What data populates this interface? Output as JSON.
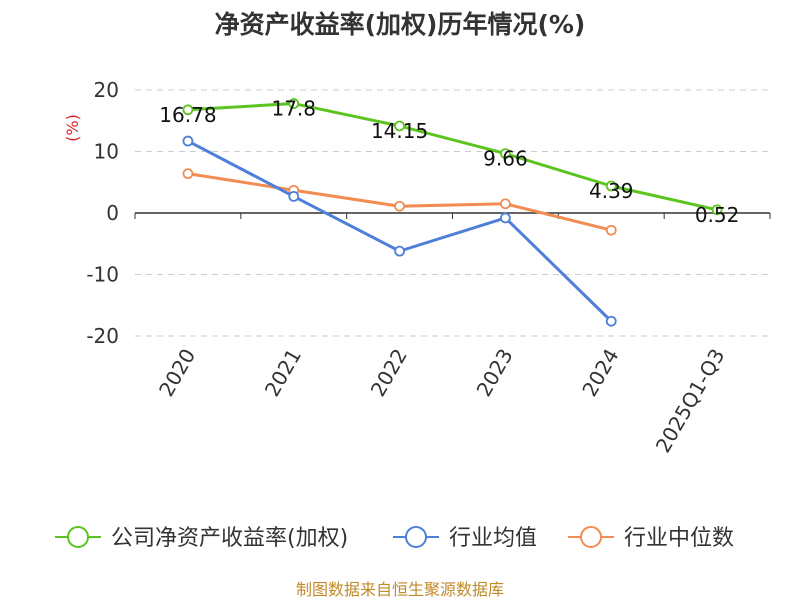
{
  "chart_data": {
    "type": "line",
    "title": "净资产收益率(加权)历年情况(%)",
    "ylabel": "(%)",
    "xlabel": "",
    "categories": [
      "2020",
      "2021",
      "2022",
      "2023",
      "2024",
      "2025Q1-Q3"
    ],
    "ylim": [
      -20,
      20
    ],
    "yticks": [
      20,
      10,
      0,
      -10,
      -20
    ],
    "grid": "dashed horizontal",
    "legend_position": "bottom",
    "series": [
      {
        "name": "公司净资产收益率(加权)",
        "color": "#5cc41f",
        "values": [
          16.78,
          17.8,
          14.15,
          9.66,
          4.39,
          0.52
        ],
        "data_labels": [
          "16.78",
          "17.8",
          "14.15",
          "9.66",
          "4.39",
          "0.52"
        ]
      },
      {
        "name": "行业均值",
        "color": "#4f7fd9",
        "values": [
          11.7,
          2.7,
          -6.2,
          -0.8,
          -17.6,
          null
        ]
      },
      {
        "name": "行业中位数",
        "color": "#f28c52",
        "values": [
          6.4,
          3.7,
          1.1,
          1.5,
          -2.8,
          null
        ]
      }
    ]
  },
  "footer": {
    "source": "制图数据来自恒生聚源数据库"
  }
}
